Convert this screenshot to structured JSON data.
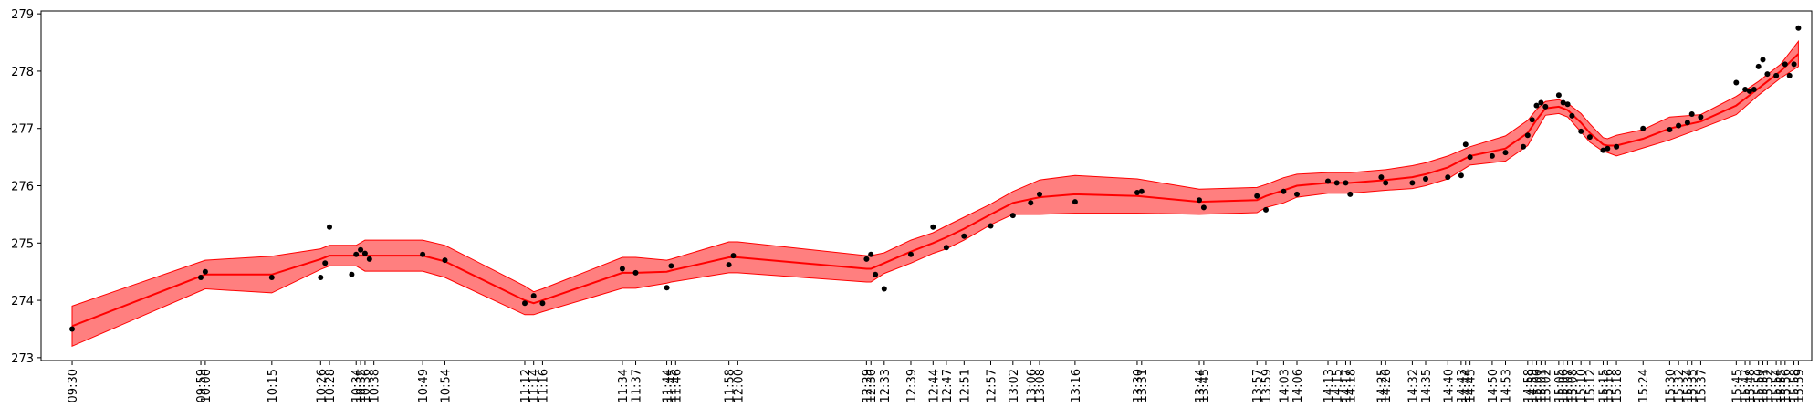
{
  "chart_data": {
    "type": "line",
    "title": "",
    "xlabel": "",
    "ylabel": "",
    "ylim": [
      272.95,
      279.05
    ],
    "xlim": [
      "09:23",
      "16:02"
    ],
    "grid": false,
    "legend": null,
    "colors": {
      "line": "#ff0000",
      "band": "#ff0000",
      "points": "#000000"
    },
    "yticks": [
      273,
      274,
      275,
      276,
      277,
      278,
      279
    ],
    "xticks": [
      "09:30",
      "09:59",
      "10:00",
      "10:15",
      "10:26",
      "10:28",
      "10:34",
      "10:35",
      "10:36",
      "10:38",
      "10:49",
      "10:54",
      "11:12",
      "11:14",
      "11:16",
      "11:34",
      "11:37",
      "11:44",
      "11:45",
      "11:46",
      "11:58",
      "12:00",
      "12:29",
      "12:30",
      "12:33",
      "12:39",
      "12:44",
      "12:47",
      "12:51",
      "12:57",
      "13:02",
      "13:06",
      "13:08",
      "13:16",
      "13:30",
      "13:31",
      "13:44",
      "13:45",
      "13:57",
      "13:59",
      "14:03",
      "14:06",
      "14:13",
      "14:15",
      "14:17",
      "14:18",
      "14:25",
      "14:26",
      "14:32",
      "14:35",
      "14:40",
      "14:43",
      "14:44",
      "14:45",
      "14:50",
      "14:53",
      "14:58",
      "14:59",
      "15:00",
      "15:01",
      "15:02",
      "15:05",
      "15:06",
      "15:07",
      "15:08",
      "15:10",
      "15:12",
      "15:15",
      "15:16",
      "15:18",
      "15:24",
      "15:30",
      "15:32",
      "15:34",
      "15:35",
      "15:37",
      "15:45",
      "15:47",
      "15:48",
      "15:50",
      "15:51",
      "15:52",
      "15:54",
      "15:55",
      "15:56",
      "15:58",
      "15:59"
    ],
    "series": [
      {
        "kind": "fit",
        "x": [
          "09:30",
          "10:00",
          "10:15",
          "10:26",
          "10:28",
          "10:34",
          "10:36",
          "10:49",
          "10:54",
          "11:12",
          "11:14",
          "11:16",
          "11:34",
          "11:37",
          "11:44",
          "11:45",
          "11:58",
          "12:00",
          "12:29",
          "12:30",
          "12:33",
          "12:39",
          "12:44",
          "12:47",
          "12:51",
          "12:57",
          "13:02",
          "13:08",
          "13:16",
          "13:30",
          "13:44",
          "13:57",
          "13:59",
          "14:03",
          "14:06",
          "14:13",
          "14:18",
          "14:26",
          "14:32",
          "14:35",
          "14:40",
          "14:45",
          "14:53",
          "14:58",
          "15:00",
          "15:02",
          "15:05",
          "15:07",
          "15:10",
          "15:12",
          "15:15",
          "15:16",
          "15:18",
          "15:24",
          "15:30",
          "15:37",
          "15:45",
          "15:50",
          "15:55",
          "15:59"
        ],
        "y": [
          273.55,
          274.45,
          274.45,
          274.72,
          274.78,
          274.78,
          274.78,
          274.78,
          274.68,
          274.0,
          273.95,
          274.0,
          274.48,
          274.48,
          274.5,
          274.52,
          274.75,
          274.75,
          274.55,
          274.55,
          274.65,
          274.85,
          275.0,
          275.1,
          275.25,
          275.5,
          275.7,
          275.8,
          275.85,
          275.82,
          275.72,
          275.75,
          275.82,
          275.92,
          276.0,
          276.05,
          276.05,
          276.1,
          276.15,
          276.2,
          276.32,
          276.52,
          276.65,
          276.92,
          277.15,
          277.35,
          277.38,
          277.32,
          277.1,
          276.92,
          276.72,
          276.7,
          276.7,
          276.82,
          277.0,
          277.12,
          277.4,
          277.7,
          278.0,
          278.3
        ],
        "band": [
          0.35,
          0.25,
          0.32,
          0.18,
          0.18,
          0.18,
          0.27,
          0.27,
          0.28,
          0.25,
          0.2,
          0.2,
          0.27,
          0.27,
          0.2,
          0.2,
          0.27,
          0.27,
          0.23,
          0.23,
          0.18,
          0.2,
          0.18,
          0.2,
          0.2,
          0.18,
          0.2,
          0.3,
          0.33,
          0.3,
          0.22,
          0.22,
          0.2,
          0.22,
          0.2,
          0.18,
          0.18,
          0.18,
          0.2,
          0.2,
          0.2,
          0.16,
          0.22,
          0.22,
          0.18,
          0.12,
          0.12,
          0.12,
          0.16,
          0.16,
          0.12,
          0.12,
          0.18,
          0.16,
          0.2,
          0.12,
          0.16,
          0.12,
          0.12,
          0.22
        ]
      },
      {
        "kind": "observations",
        "x": [
          "09:30",
          "09:59",
          "10:00",
          "10:15",
          "10:26",
          "10:27",
          "10:28",
          "10:33",
          "10:34",
          "10:35",
          "10:36",
          "10:37",
          "10:49",
          "10:54",
          "11:12",
          "11:14",
          "11:16",
          "11:34",
          "11:37",
          "11:44",
          "11:45",
          "11:58",
          "11:59",
          "12:29",
          "12:30",
          "12:31",
          "12:33",
          "12:39",
          "12:44",
          "12:47",
          "12:51",
          "12:57",
          "13:02",
          "13:06",
          "13:08",
          "13:16",
          "13:30",
          "13:31",
          "13:44",
          "13:45",
          "13:57",
          "13:59",
          "14:03",
          "14:06",
          "14:13",
          "14:15",
          "14:17",
          "14:18",
          "14:25",
          "14:26",
          "14:32",
          "14:35",
          "14:40",
          "14:43",
          "14:44",
          "14:45",
          "14:50",
          "14:53",
          "14:57",
          "14:58",
          "14:59",
          "15:00",
          "15:01",
          "15:02",
          "15:05",
          "15:06",
          "15:07",
          "15:08",
          "15:10",
          "15:12",
          "15:15",
          "15:16",
          "15:18",
          "15:24",
          "15:30",
          "15:32",
          "15:34",
          "15:35",
          "15:37",
          "15:45",
          "15:47",
          "15:48",
          "15:49",
          "15:50",
          "15:51",
          "15:52",
          "15:54",
          "15:56",
          "15:57",
          "15:58",
          "15:59"
        ],
        "y": [
          273.5,
          274.4,
          274.5,
          274.4,
          274.4,
          274.65,
          275.28,
          274.45,
          274.8,
          274.88,
          274.82,
          274.72,
          274.8,
          274.7,
          273.95,
          274.08,
          273.95,
          274.55,
          274.48,
          274.22,
          274.6,
          274.62,
          274.78,
          274.72,
          274.8,
          274.45,
          274.2,
          274.8,
          275.28,
          274.92,
          275.12,
          275.3,
          275.48,
          275.7,
          275.85,
          275.72,
          275.88,
          275.9,
          275.75,
          275.62,
          275.82,
          275.58,
          275.9,
          275.85,
          276.08,
          276.05,
          276.05,
          275.85,
          276.15,
          276.05,
          276.05,
          276.12,
          276.15,
          276.18,
          276.72,
          276.5,
          276.52,
          276.58,
          276.68,
          276.88,
          277.15,
          277.4,
          277.45,
          277.38,
          277.58,
          277.45,
          277.42,
          277.22,
          276.95,
          276.85,
          276.62,
          276.65,
          276.68,
          277.0,
          276.98,
          277.05,
          277.1,
          277.25,
          277.2,
          277.8,
          277.68,
          277.65,
          277.68,
          278.08,
          278.2,
          277.95,
          277.92,
          278.12,
          277.92,
          278.12,
          278.75
        ]
      }
    ]
  }
}
